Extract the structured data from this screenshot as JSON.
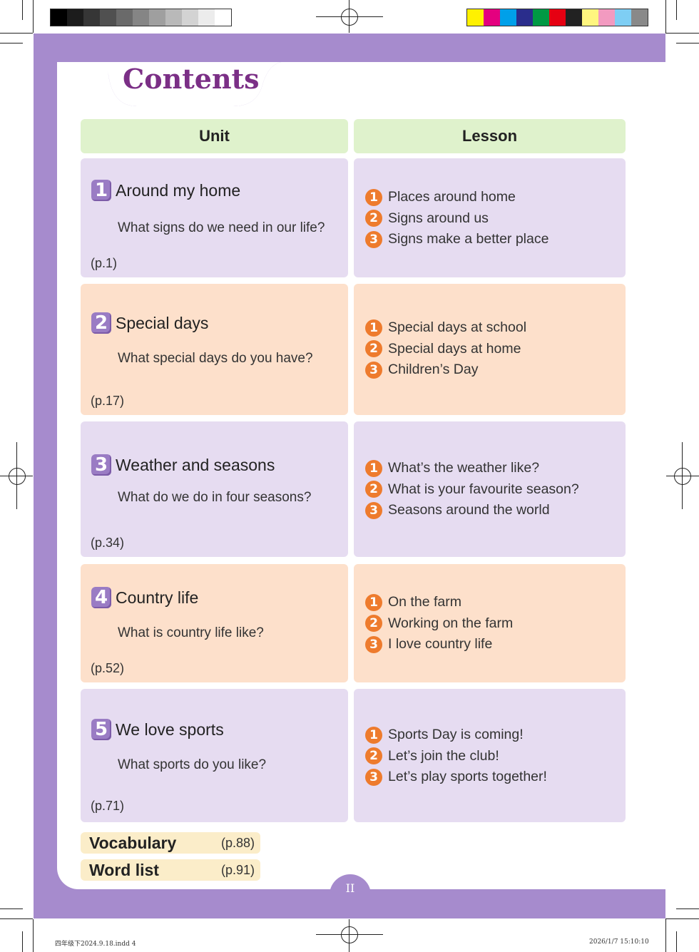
{
  "print_marks": {
    "gray_swatches": [
      "#000000",
      "#1c1c1c",
      "#363636",
      "#505050",
      "#6a6a6a",
      "#858585",
      "#9f9f9f",
      "#b9b9b9",
      "#d3d3d3",
      "#ececec",
      "#ffffff"
    ],
    "color_swatches": [
      "#fff100",
      "#e4007f",
      "#00a0e9",
      "#2a2d8c",
      "#009944",
      "#e60012",
      "#222222",
      "#fff67f",
      "#f29ac0",
      "#7ecef4",
      "#898989"
    ],
    "slug_left": "四年级下2024.9.18.indd   4",
    "slug_right": "2026/1/7   15:10:10"
  },
  "title": "Contents",
  "headers": {
    "unit": "Unit",
    "lesson": "Lesson"
  },
  "units": [
    {
      "number": "1",
      "title": "Around my home",
      "question": "What signs do we need in our life?",
      "page": "(p.1)",
      "lessons": [
        {
          "number": "1",
          "title": "Places around home"
        },
        {
          "number": "2",
          "title": "Signs around us"
        },
        {
          "number": "3",
          "title": "Signs make a better place"
        }
      ]
    },
    {
      "number": "2",
      "title": "Special days",
      "question": "What special days do you have?",
      "page": "(p.17)",
      "lessons": [
        {
          "number": "1",
          "title": "Special days at school"
        },
        {
          "number": "2",
          "title": "Special days at home"
        },
        {
          "number": "3",
          "title": "Children’s Day"
        }
      ]
    },
    {
      "number": "3",
      "title": "Weather and seasons",
      "question": "What do we do in four seasons?",
      "page": "(p.34)",
      "lessons": [
        {
          "number": "1",
          "title": "What’s the weather like?"
        },
        {
          "number": "2",
          "title": "What is your favourite season?"
        },
        {
          "number": "3",
          "title": "Seasons around the world"
        }
      ]
    },
    {
      "number": "4",
      "title": "Country life",
      "question": "What is country life like?",
      "page": "(p.52)",
      "lessons": [
        {
          "number": "1",
          "title": "On the farm"
        },
        {
          "number": "2",
          "title": "Working on the farm"
        },
        {
          "number": "3",
          "title": "I love country life"
        }
      ]
    },
    {
      "number": "5",
      "title": "We love sports",
      "question": "What sports do you like?",
      "page": "(p.71)",
      "lessons": [
        {
          "number": "1",
          "title": "Sports Day is coming!"
        },
        {
          "number": "2",
          "title": "Let’s join the club!"
        },
        {
          "number": "3",
          "title": "Let’s play sports together!"
        }
      ]
    }
  ],
  "extras": [
    {
      "label": "Vocabulary",
      "page": "(p.88)"
    },
    {
      "label": "Word list",
      "page": "(p.91)"
    }
  ],
  "page_number": "II",
  "colors": {
    "frame": "#a68bcd",
    "title": "#7b2f86",
    "header_bg": "#dff2cc",
    "purple_cell": "#e6dcf1",
    "peach_cell": "#fde0cb",
    "lesson_badge": "#ee7b2d",
    "extra_bg": "#fbedc9"
  }
}
